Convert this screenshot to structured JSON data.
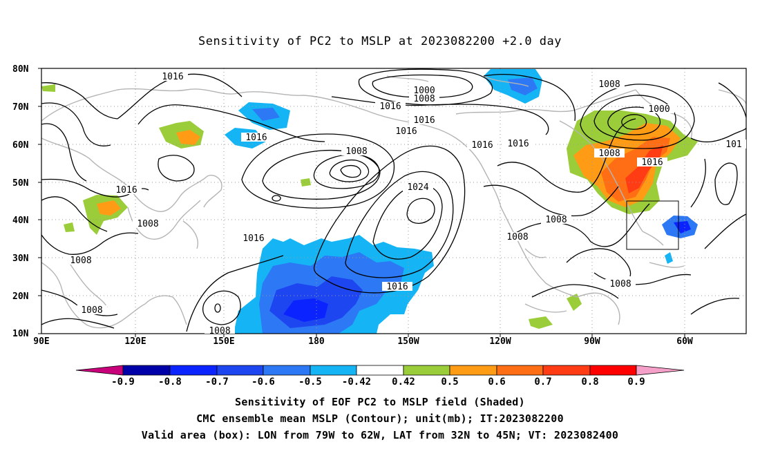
{
  "title": "Sensitivity of PC2 to MSLP at 2023082200 +2.0 day",
  "lat_labels": [
    "80N",
    "70N",
    "60N",
    "50N",
    "40N",
    "30N",
    "20N",
    "10N"
  ],
  "lon_labels": [
    "90E",
    "120E",
    "150E",
    "180",
    "150W",
    "120W",
    "90W",
    "60W"
  ],
  "contour_labels": [
    "1016",
    "1000",
    "1008",
    "1016",
    "1016",
    "1016",
    "1016",
    "1016",
    "1008",
    "1000",
    "1008",
    "1016",
    "101",
    "1008",
    "1016",
    "1016",
    "1024",
    "1008",
    "1016",
    "1008",
    "1008",
    "1016",
    "1008",
    "1008",
    "1008",
    "1008"
  ],
  "colorbar": {
    "labels": [
      "-0.9",
      "-0.8",
      "-0.7",
      "-0.6",
      "-0.5",
      "-0.42",
      "0.42",
      "0.5",
      "0.6",
      "0.7",
      "0.8",
      "0.9"
    ],
    "colors": [
      "#c8007a",
      "#0000a8",
      "#0a23ff",
      "#1e46f0",
      "#2d78f5",
      "#14b4f5",
      "#ffffff",
      "#9bcd3a",
      "#ff9b14",
      "#ff6e14",
      "#ff3c14",
      "#ff0000",
      "#f5a0c8"
    ]
  },
  "captions": [
    "Sensitivity of EOF PC2 to MSLP field (Shaded)",
    "CMC ensemble mean MSLP (Contour); unit(mb); IT:2023082200",
    "Valid area (box): LON from 79W to 62W, LAT from 32N to 45N; VT: 2023082400"
  ]
}
